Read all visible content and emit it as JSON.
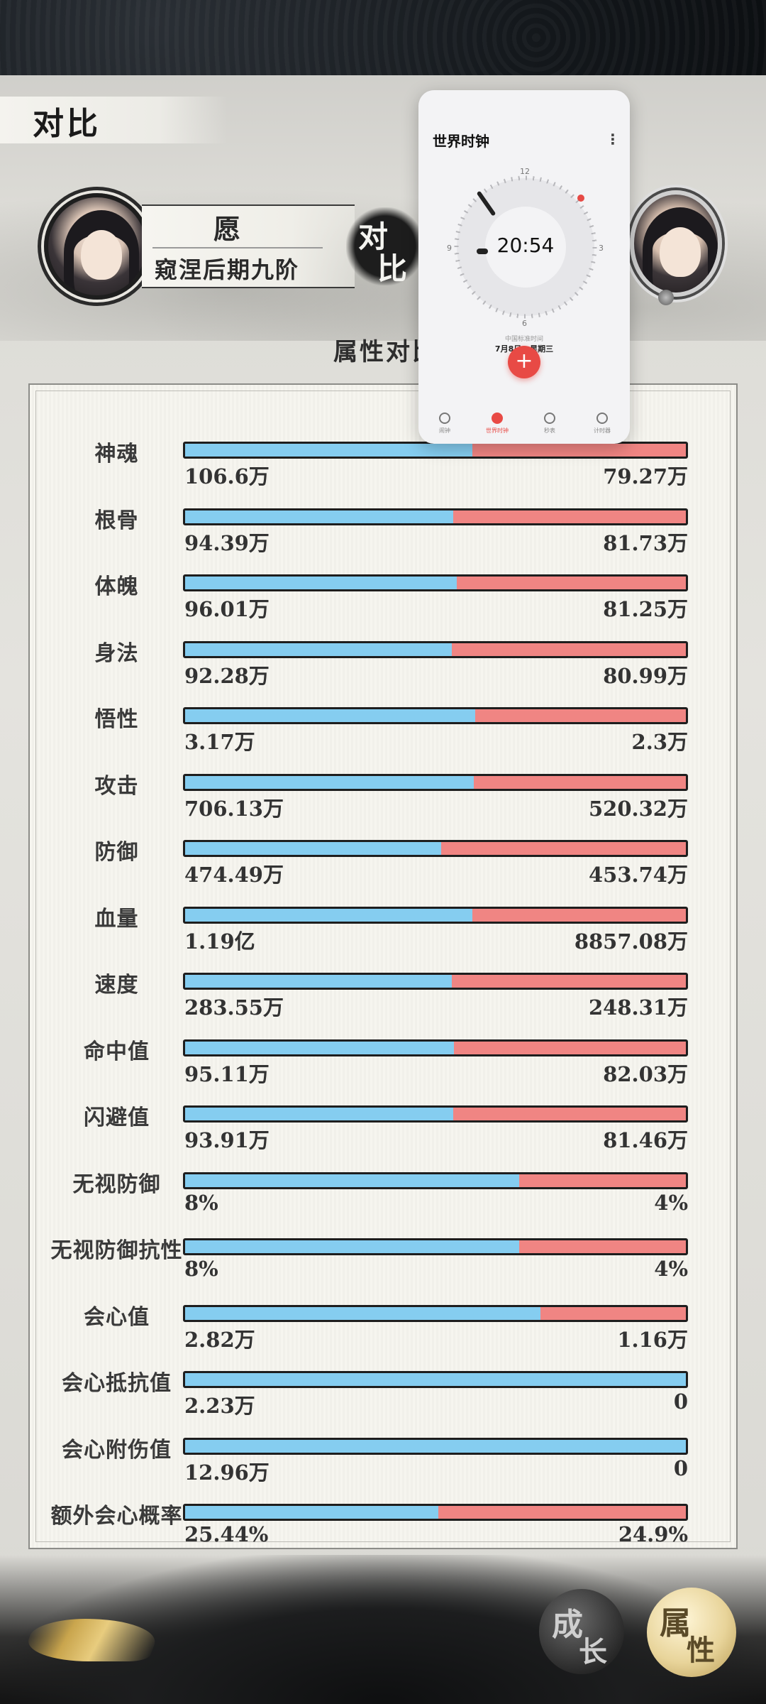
{
  "header": {
    "title": "对比"
  },
  "player_left": {
    "name": "愿",
    "rank": "窥涅后期九阶"
  },
  "versus": {
    "char1": "对",
    "char2": "比"
  },
  "section_title": "属性对比",
  "colors": {
    "left_bar": "#85cdf0",
    "right_bar": "#f08583",
    "accent_red": "#e84a45"
  },
  "stats": [
    {
      "label": "神魂",
      "left": "106.6万",
      "right": "79.27万",
      "left_share": 0.573
    },
    {
      "label": "根骨",
      "left": "94.39万",
      "right": "81.73万",
      "left_share": 0.536
    },
    {
      "label": "体魄",
      "left": "96.01万",
      "right": "81.25万",
      "left_share": 0.542
    },
    {
      "label": "身法",
      "left": "92.28万",
      "right": "80.99万",
      "left_share": 0.533
    },
    {
      "label": "悟性",
      "left": "3.17万",
      "right": "2.3万",
      "left_share": 0.579
    },
    {
      "label": "攻击",
      "left": "706.13万",
      "right": "520.32万",
      "left_share": 0.576
    },
    {
      "label": "防御",
      "left": "474.49万",
      "right": "453.74万",
      "left_share": 0.511
    },
    {
      "label": "血量",
      "left": "1.19亿",
      "right": "8857.08万",
      "left_share": 0.573
    },
    {
      "label": "速度",
      "left": "283.55万",
      "right": "248.31万",
      "left_share": 0.533
    },
    {
      "label": "命中值",
      "left": "95.11万",
      "right": "82.03万",
      "left_share": 0.537
    },
    {
      "label": "闪避值",
      "left": "93.91万",
      "right": "81.46万",
      "left_share": 0.536
    },
    {
      "label": "无视防御",
      "left": "8%",
      "right": "4%",
      "left_share": 0.667
    },
    {
      "label": "无视防御抗性",
      "left": "8%",
      "right": "4%",
      "left_share": 0.667
    },
    {
      "label": "会心值",
      "left": "2.82万",
      "right": "1.16万",
      "left_share": 0.709
    },
    {
      "label": "会心抵抗值",
      "left": "2.23万",
      "right": "0",
      "left_share": 1.0
    },
    {
      "label": "会心附伤值",
      "left": "12.96万",
      "right": "0",
      "left_share": 1.0
    },
    {
      "label": "额外会心概率",
      "left": "25.44%",
      "right": "24.9%",
      "left_share": 0.505
    }
  ],
  "bottom_tabs": [
    {
      "c1": "成",
      "c2": "长"
    },
    {
      "c1": "属",
      "c2": "性"
    }
  ],
  "world_clock": {
    "title": "世界时钟",
    "time": "20:54",
    "dial": {
      "12": "12",
      "3": "3",
      "6": "6",
      "9": "9"
    },
    "city": "中国标准时间",
    "date": "7月8日 · 星期三",
    "fab": "+",
    "tabs": [
      {
        "label": "闹钟",
        "icon": "alarm-icon",
        "active": false
      },
      {
        "label": "世界时钟",
        "icon": "globe-icon",
        "active": true
      },
      {
        "label": "秒表",
        "icon": "stopwatch-icon",
        "active": false
      },
      {
        "label": "计时器",
        "icon": "hourglass-icon",
        "active": false
      }
    ]
  }
}
